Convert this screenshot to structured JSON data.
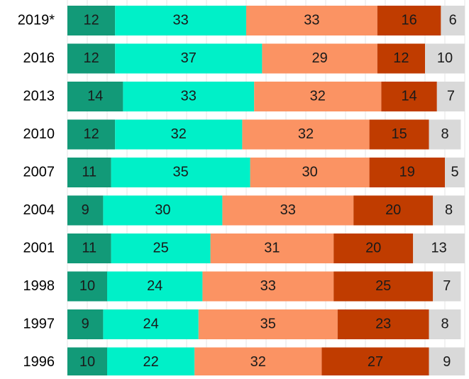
{
  "chart_data": {
    "type": "bar",
    "orientation": "horizontal",
    "stacked": true,
    "title": "",
    "xlabel": "",
    "ylabel": "",
    "xlim": [
      0,
      100
    ],
    "grid": true,
    "categories": [
      "2019*",
      "2016",
      "2013",
      "2010",
      "2007",
      "2004",
      "2001",
      "1998",
      "1997",
      "1996"
    ],
    "series": [
      {
        "color": "#129a78",
        "values": [
          12,
          12,
          14,
          12,
          11,
          9,
          11,
          10,
          9,
          10
        ]
      },
      {
        "color": "#00f0c8",
        "values": [
          33,
          37,
          33,
          32,
          35,
          30,
          25,
          24,
          24,
          22
        ]
      },
      {
        "color": "#fb9363",
        "values": [
          33,
          29,
          32,
          32,
          30,
          33,
          31,
          33,
          35,
          32
        ]
      },
      {
        "color": "#c03c00",
        "values": [
          16,
          12,
          14,
          15,
          19,
          20,
          20,
          25,
          23,
          27
        ]
      },
      {
        "color": "#d9d9d9",
        "values": [
          6,
          10,
          7,
          8,
          5,
          8,
          13,
          7,
          8,
          9
        ]
      }
    ]
  }
}
